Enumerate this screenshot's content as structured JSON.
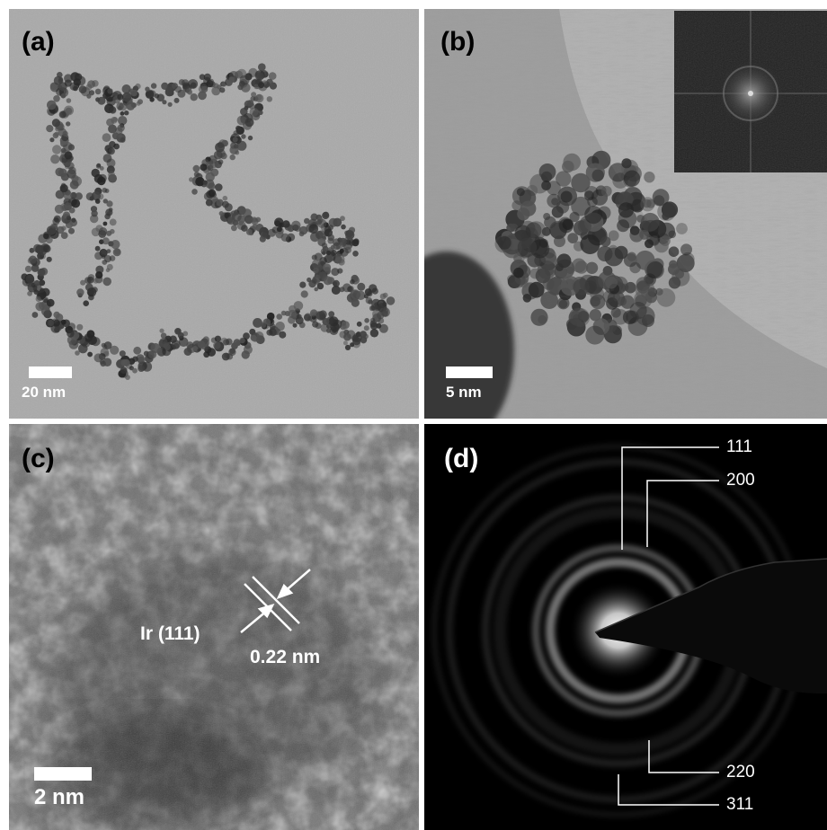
{
  "panels": {
    "a": {
      "label": "(a)",
      "scale_label": "20 nm"
    },
    "b": {
      "label": "(b)",
      "scale_label": "5 nm",
      "inset": "fft-pattern"
    },
    "c": {
      "label": "(c)",
      "scale_label": "2 nm",
      "plane_label": "Ir (111)",
      "spacing_label": "0.22 nm"
    },
    "d": {
      "label": "(d)",
      "rings": [
        "111",
        "200",
        "220",
        "311"
      ]
    }
  },
  "colors": {
    "annotation": "#ffffff",
    "background_dark": "#000000"
  }
}
